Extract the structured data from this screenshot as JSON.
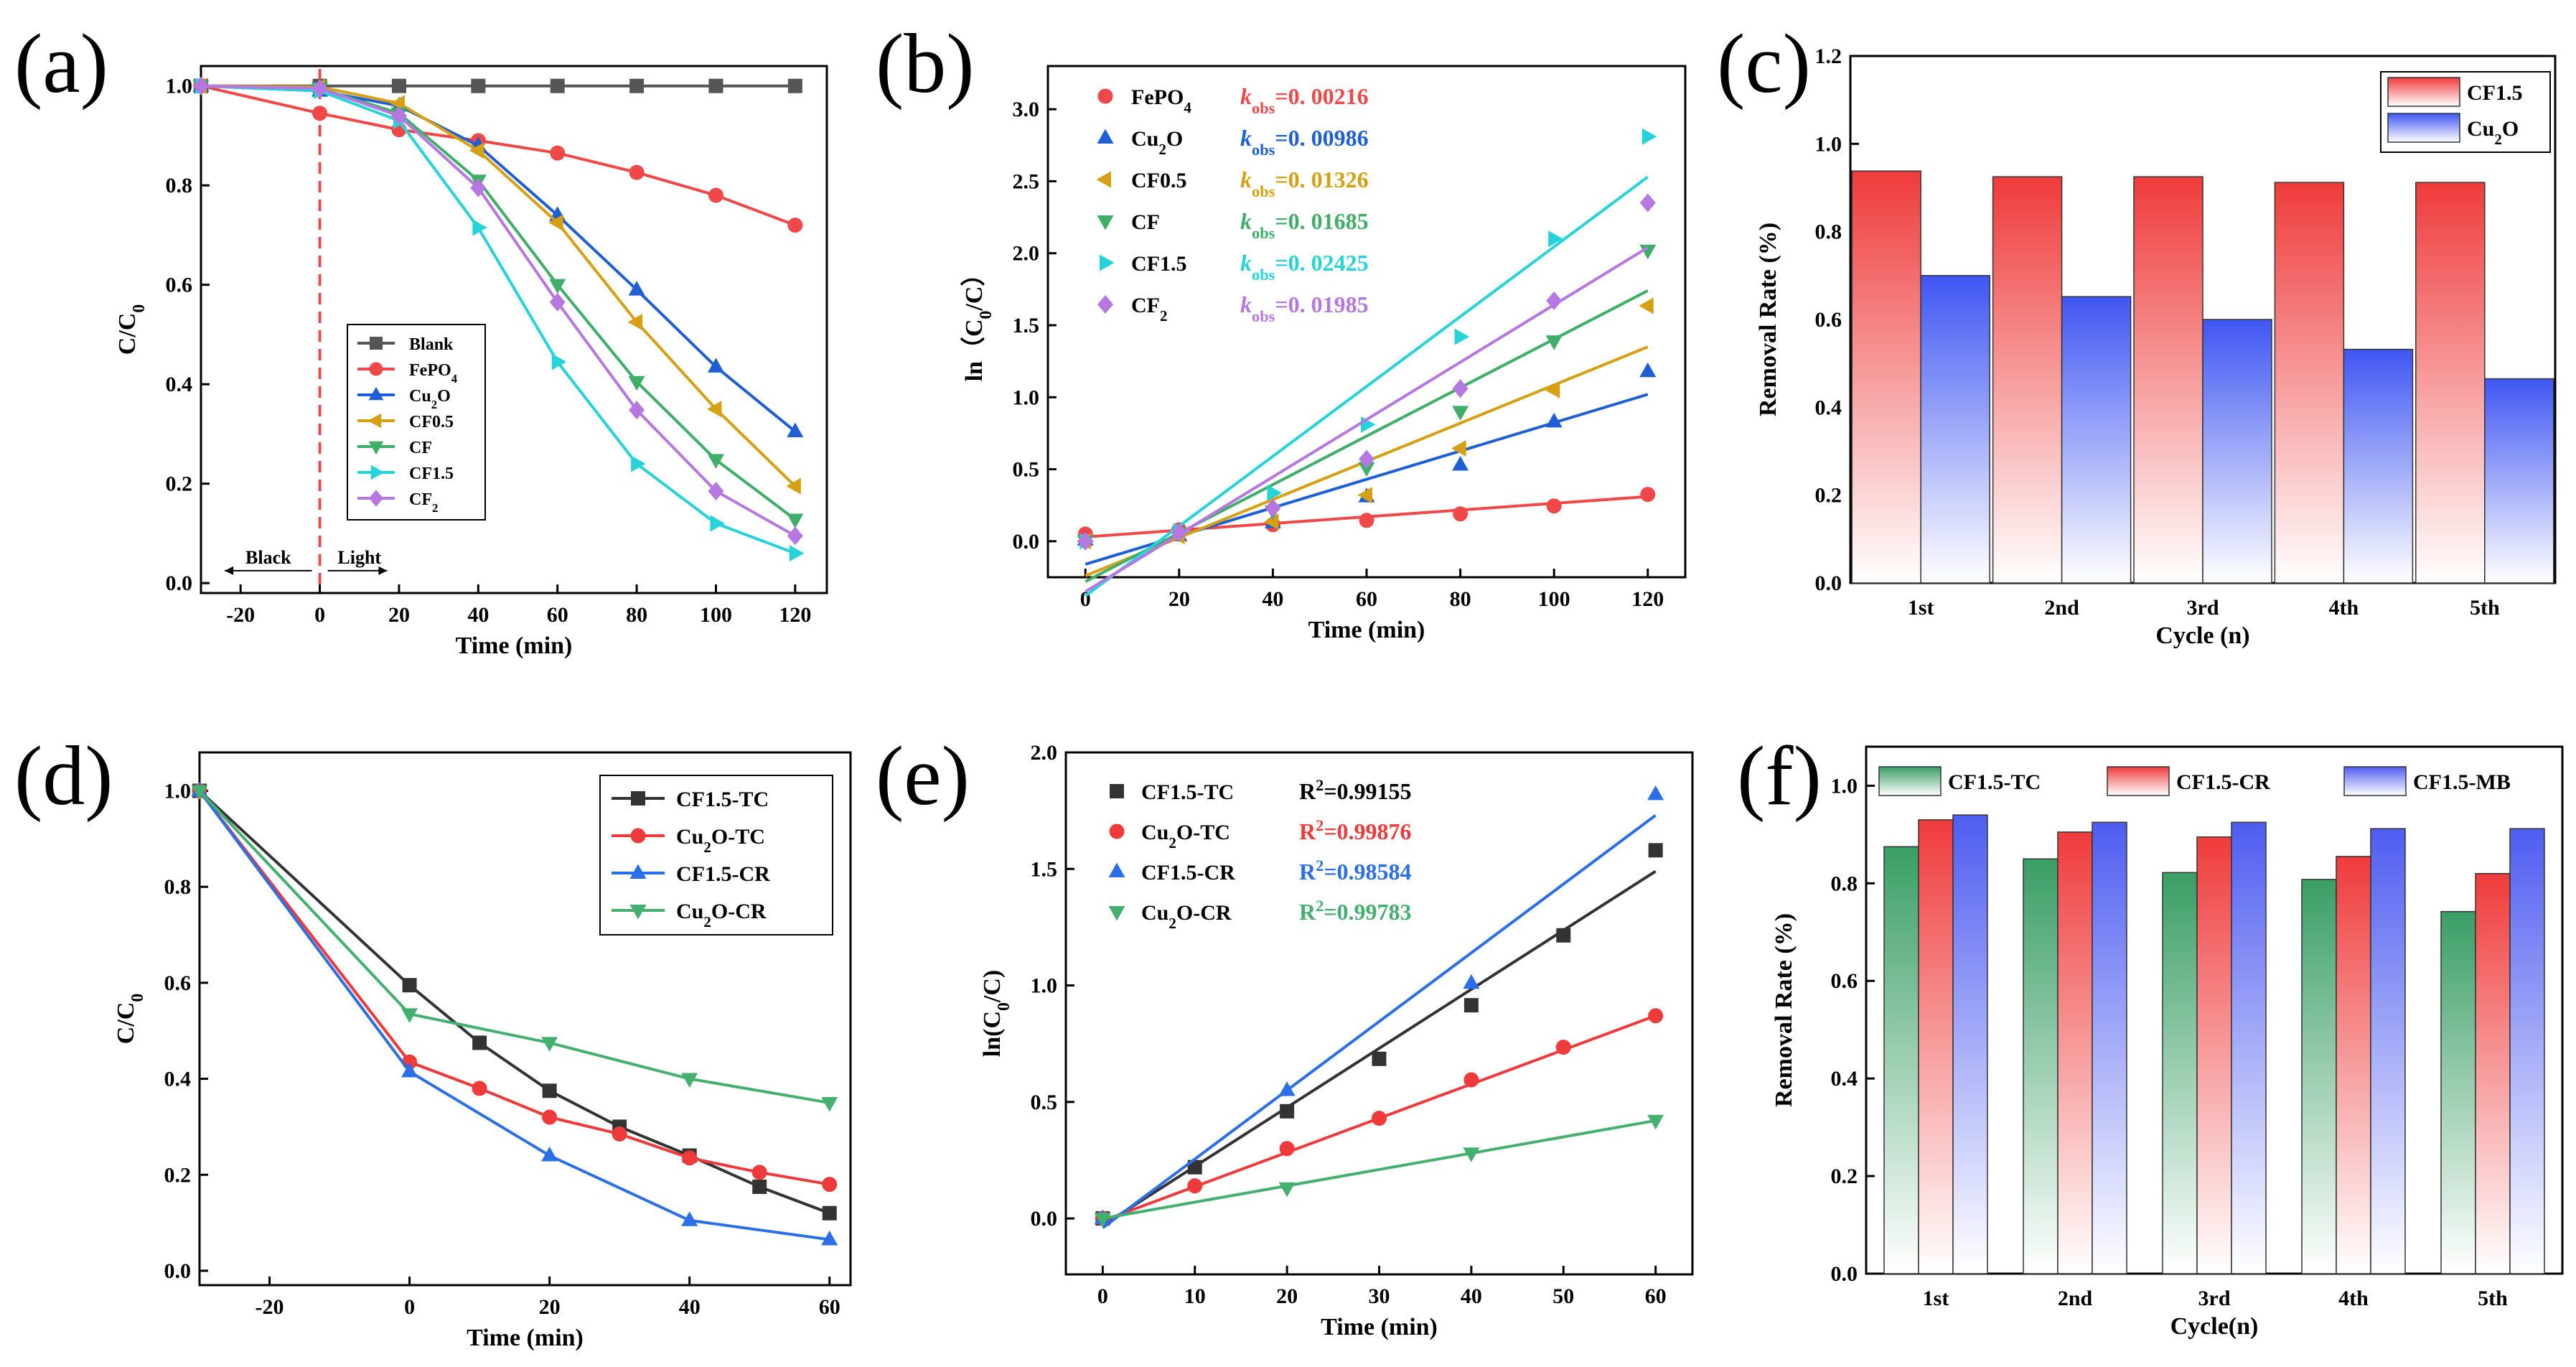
{
  "figure": {
    "colors": {
      "gray": "#555555",
      "red": "#f04848",
      "blue": "#1f5fd6",
      "gold": "#d6a012",
      "green": "#3fae69",
      "cyan": "#27d3db",
      "violet": "#b678e0",
      "black": "#333333",
      "tc_red": "#ee3a3a",
      "cr_blue": "#2b6fe8",
      "cr_green": "#43b06f",
      "bar_red": "#ef3b3b",
      "bar_blue": "#3f56f2",
      "bar_green": "#3a9e64",
      "bar_violet": "#4f5df0"
    }
  },
  "chart_data": [
    {
      "id": "a",
      "panel_label": "(a)",
      "type": "line",
      "xlabel": "Time (min)",
      "ylabel": "C/C0",
      "xlim": [
        -30,
        128
      ],
      "ylim": [
        -0.02,
        1.04
      ],
      "xticks": [
        -20,
        0,
        20,
        40,
        60,
        80,
        100,
        120
      ],
      "yticks": [
        0.0,
        0.2,
        0.4,
        0.6,
        0.8,
        1.0
      ],
      "yticks_labels": [
        "0.0",
        "0.2",
        "0.4",
        "0.6",
        "0.8",
        "1.0"
      ],
      "x": [
        -30,
        0,
        20,
        40,
        60,
        80,
        100,
        120
      ],
      "series": [
        {
          "name": "Blank",
          "color": "gray",
          "marker": "square",
          "values": [
            1.0,
            1.0,
            1.0,
            1.0,
            1.0,
            1.0,
            1.0,
            1.0
          ]
        },
        {
          "name": "FePO4",
          "color": "red",
          "marker": "circle",
          "values": [
            1.0,
            0.945,
            0.912,
            0.89,
            0.865,
            0.826,
            0.78,
            0.72
          ]
        },
        {
          "name": "Cu2O",
          "color": "blue",
          "marker": "triangle-up",
          "values": [
            1.0,
            0.99,
            0.96,
            0.88,
            0.74,
            0.59,
            0.435,
            0.305
          ]
        },
        {
          "name": "CF0.5",
          "color": "gold",
          "marker": "triangle-left",
          "values": [
            1.0,
            0.998,
            0.965,
            0.87,
            0.725,
            0.525,
            0.35,
            0.195
          ]
        },
        {
          "name": "CF",
          "color": "green",
          "marker": "triangle-down",
          "values": [
            1.0,
            0.995,
            0.945,
            0.81,
            0.6,
            0.405,
            0.248,
            0.128
          ]
        },
        {
          "name": "CF1.5",
          "color": "cyan",
          "marker": "triangle-right",
          "values": [
            1.0,
            0.99,
            0.93,
            0.715,
            0.445,
            0.24,
            0.12,
            0.06
          ]
        },
        {
          "name": "CF2",
          "color": "violet",
          "marker": "diamond",
          "values": [
            1.0,
            0.995,
            0.94,
            0.795,
            0.565,
            0.348,
            0.185,
            0.095
          ]
        }
      ],
      "dashed_line_x": 0,
      "annotations": {
        "dark": "Black",
        "light": "Light"
      }
    },
    {
      "id": "b",
      "panel_label": "(b)",
      "type": "scatter",
      "xlabel": "Time (min)",
      "ylabel": "ln（C0/C）",
      "xlim": [
        -8,
        128
      ],
      "ylim": [
        -0.25,
        3.3
      ],
      "xticks": [
        0,
        20,
        40,
        60,
        80,
        100,
        120
      ],
      "yticks": [
        0.0,
        0.5,
        1.0,
        1.5,
        2.0,
        2.5,
        3.0
      ],
      "yticks_labels": [
        "0.0",
        "0.5",
        "1.0",
        "1.5",
        "2.0",
        "2.5",
        "3.0"
      ],
      "x": [
        0,
        20,
        40,
        60,
        80,
        100,
        120
      ],
      "series": [
        {
          "name": "FePO4",
          "color": "red",
          "marker": "circle",
          "kobs": "0. 00216",
          "values": [
            0.05,
            0.08,
            0.115,
            0.145,
            0.19,
            0.245,
            0.325
          ],
          "fit": [
            0.03,
            0.31
          ]
        },
        {
          "name": "Cu2O",
          "color": "blue",
          "marker": "triangle-up",
          "kobs": "0. 00986",
          "values": [
            0.01,
            0.04,
            0.13,
            0.31,
            0.53,
            0.83,
            1.18
          ],
          "fit": [
            -0.16,
            1.02
          ]
        },
        {
          "name": "CF0.5",
          "color": "gold",
          "marker": "triangle-left",
          "kobs": "0. 01326",
          "values": [
            0.0,
            0.035,
            0.135,
            0.32,
            0.645,
            1.05,
            1.635
          ],
          "fit": [
            -0.24,
            1.35
          ]
        },
        {
          "name": "CF",
          "color": "green",
          "marker": "triangle-down",
          "kobs": "0. 01685",
          "values": [
            0.0,
            0.055,
            0.21,
            0.51,
            0.9,
            1.39,
            2.02
          ],
          "fit": [
            -0.28,
            1.74
          ]
        },
        {
          "name": "CF1.5",
          "color": "cyan",
          "marker": "triangle-right",
          "kobs": "0. 02425",
          "values": [
            0.0,
            0.07,
            0.335,
            0.81,
            1.42,
            2.1,
            2.81
          ],
          "fit": [
            -0.38,
            2.53
          ]
        },
        {
          "name": "CF2",
          "color": "violet",
          "marker": "diamond",
          "kobs": "0. 01985",
          "values": [
            0.0,
            0.06,
            0.23,
            0.57,
            1.06,
            1.67,
            2.35
          ],
          "fit": [
            -0.35,
            2.04
          ]
        }
      ]
    },
    {
      "id": "c",
      "panel_label": "(c)",
      "type": "bar",
      "xlabel": "Cycle (n)",
      "ylabel": "Removal Rate (%)",
      "ylim": [
        0,
        1.2
      ],
      "yticks": [
        0,
        0.2,
        0.4,
        0.6,
        0.8,
        1.0,
        1.2
      ],
      "yticks_labels": [
        "0.0",
        "0.2",
        "0.4",
        "0.6",
        "0.8",
        "1.0",
        "1.2"
      ],
      "categories": [
        "1st",
        "2nd",
        "3rd",
        "4th",
        "5th"
      ],
      "series": [
        {
          "name": "CF1.5",
          "color": "bar_red",
          "values": [
            0.938,
            0.925,
            0.925,
            0.912,
            0.912
          ]
        },
        {
          "name": "Cu2O",
          "color": "bar_blue",
          "values": [
            0.7,
            0.652,
            0.6,
            0.532,
            0.465
          ]
        }
      ]
    },
    {
      "id": "d",
      "panel_label": "(d)",
      "type": "line",
      "xlabel": "Time (min)",
      "ylabel": "C/C0",
      "xlim": [
        -30,
        63
      ],
      "ylim": [
        -0.03,
        1.08
      ],
      "xticks": [
        -20,
        0,
        20,
        40,
        60
      ],
      "yticks": [
        0.0,
        0.2,
        0.4,
        0.6,
        0.8,
        1.0
      ],
      "yticks_labels": [
        "0.0",
        "0.2",
        "0.4",
        "0.6",
        "0.8",
        "1.0"
      ],
      "series": [
        {
          "name": "CF1.5-TC",
          "color": "black",
          "marker": "square",
          "x": [
            -30,
            0,
            10,
            20,
            30,
            40,
            50,
            60
          ],
          "values": [
            1.0,
            0.595,
            0.475,
            0.375,
            0.3,
            0.24,
            0.175,
            0.12
          ]
        },
        {
          "name": "Cu2O-TC",
          "color": "tc_red",
          "marker": "circle",
          "x": [
            -30,
            0,
            10,
            20,
            30,
            40,
            50,
            60
          ],
          "values": [
            1.0,
            0.435,
            0.38,
            0.32,
            0.285,
            0.235,
            0.205,
            0.18
          ]
        },
        {
          "name": "CF1.5-CR",
          "color": "cr_blue",
          "marker": "triangle-up",
          "x": [
            -30,
            0,
            20,
            40,
            60
          ],
          "values": [
            1.0,
            0.415,
            0.24,
            0.105,
            0.065
          ]
        },
        {
          "name": "Cu2O-CR",
          "color": "cr_green",
          "marker": "triangle-down",
          "x": [
            -30,
            0,
            20,
            40,
            60
          ],
          "values": [
            1.0,
            0.535,
            0.475,
            0.4,
            0.35
          ]
        }
      ]
    },
    {
      "id": "e",
      "panel_label": "(e)",
      "type": "scatter",
      "xlabel": "Time (min)",
      "ylabel": "ln(C0/C)",
      "xlim": [
        -4,
        64
      ],
      "ylim": [
        -0.24,
        2.0
      ],
      "xticks": [
        0,
        10,
        20,
        30,
        40,
        50,
        60
      ],
      "yticks": [
        0.0,
        0.5,
        1.0,
        1.5,
        2.0
      ],
      "yticks_labels": [
        "0.0",
        "0.5",
        "1.0",
        "1.5",
        "2.0"
      ],
      "series": [
        {
          "name": "CF1.5-TC",
          "color": "black",
          "marker": "square",
          "r2": "0.99155",
          "x": [
            0,
            10,
            20,
            30,
            40,
            50,
            60
          ],
          "values": [
            0.0,
            0.22,
            0.46,
            0.685,
            0.915,
            1.215,
            1.58
          ],
          "fit": [
            -0.03,
            1.49
          ]
        },
        {
          "name": "Cu2O-TC",
          "color": "tc_red",
          "marker": "circle",
          "r2": "0.99876",
          "x": [
            0,
            10,
            20,
            30,
            40,
            50,
            60
          ],
          "values": [
            0.0,
            0.14,
            0.3,
            0.43,
            0.595,
            0.735,
            0.87
          ],
          "fit": [
            -0.01,
            0.87
          ]
        },
        {
          "name": "CF1.5-CR",
          "color": "cr_blue",
          "marker": "triangle-up",
          "r2": "0.98584",
          "x": [
            0,
            20,
            40,
            60
          ],
          "values": [
            0.0,
            0.55,
            1.01,
            1.82
          ],
          "fit": [
            -0.04,
            1.73
          ]
        },
        {
          "name": "Cu2O-CR",
          "color": "cr_green",
          "marker": "triangle-down",
          "r2": "0.99783",
          "x": [
            0,
            20,
            40,
            60
          ],
          "values": [
            0.0,
            0.13,
            0.28,
            0.42
          ],
          "fit": [
            0.0,
            0.42
          ]
        }
      ]
    },
    {
      "id": "f",
      "panel_label": "(f)",
      "type": "bar",
      "xlabel": "Cycle(n)",
      "ylabel": "Removal Rate (%)",
      "ylim": [
        0,
        1.08
      ],
      "yticks": [
        0,
        0.2,
        0.4,
        0.6,
        0.8,
        1.0
      ],
      "yticks_labels": [
        "0.0",
        "0.2",
        "0.4",
        "0.6",
        "0.8",
        "1.0"
      ],
      "categories": [
        "1st",
        "2nd",
        "3rd",
        "4th",
        "5th"
      ],
      "series": [
        {
          "name": "CF1.5-TC",
          "color": "bar_green",
          "values": [
            0.875,
            0.85,
            0.822,
            0.808,
            0.742
          ]
        },
        {
          "name": "CF1.5-CR",
          "color": "bar_red",
          "values": [
            0.93,
            0.905,
            0.895,
            0.855,
            0.82
          ]
        },
        {
          "name": "CF1.5-MB",
          "color": "bar_violet",
          "values": [
            0.94,
            0.925,
            0.925,
            0.912,
            0.912
          ]
        }
      ]
    }
  ]
}
